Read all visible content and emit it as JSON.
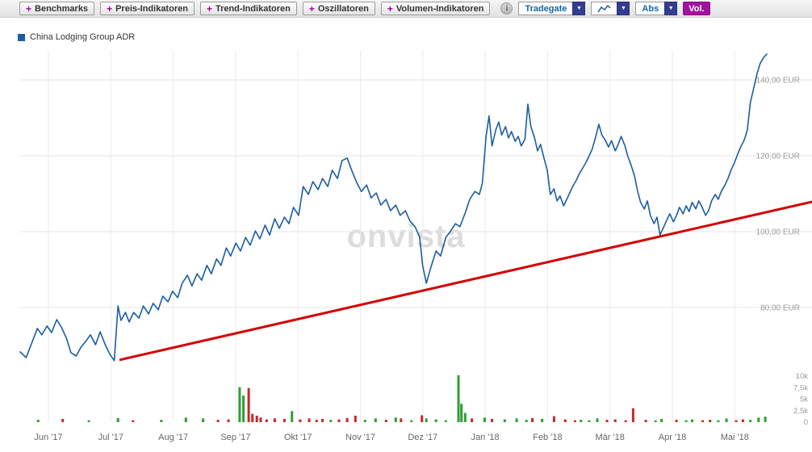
{
  "toolbar": {
    "plus": "+",
    "caret": "▼",
    "info_glyph": "i",
    "indicator_buttons": [
      {
        "label": "Benchmarks"
      },
      {
        "label": "Preis-Indikatoren"
      },
      {
        "label": "Trend-Indikatoren"
      },
      {
        "label": "Oszillatoren"
      },
      {
        "label": "Volumen-Indikatoren"
      }
    ],
    "exchange_label": "Tradegate",
    "scale_label": "Abs",
    "volume_label": "Vol."
  },
  "legend": {
    "series_name": "China Lodging Group ADR"
  },
  "watermark": "onvista",
  "chart_data": {
    "type": "line",
    "title": "China Lodging Group ADR",
    "grid": true,
    "legend_position": "top-left",
    "x_ticks": [
      "Jun '17",
      "Jul '17",
      "Aug '17",
      "Sep '17",
      "Okt '17",
      "Nov '17",
      "Dez '17",
      "Jan '18",
      "Feb '18",
      "Mär '18",
      "Apr '18",
      "Mai '18"
    ],
    "y_axis": {
      "unit": "EUR",
      "visible_range": [
        64,
        148
      ],
      "ticks": [
        {
          "label": "140,00 EUR",
          "value": 140
        },
        {
          "label": "120,00 EUR",
          "value": 120
        },
        {
          "label": "100,00 EUR",
          "value": 100
        },
        {
          "label": "80,00 EUR",
          "value": 80
        }
      ]
    },
    "volume_axis": {
      "ticks": [
        {
          "label": "10k",
          "value": 10
        },
        {
          "label": "7,5k",
          "value": 7.5
        },
        {
          "label": "5k",
          "value": 5
        },
        {
          "label": "2,5k",
          "value": 2.5
        },
        {
          "label": "0",
          "value": 0
        }
      ]
    },
    "colors": {
      "price": "#1b5da0",
      "trend": "#d40000",
      "volume_up": "#2f9e33",
      "volume_down": "#c62828"
    },
    "price_points": [
      [
        0.0,
        68.3
      ],
      [
        0.008,
        66.8
      ],
      [
        0.016,
        70.9
      ],
      [
        0.023,
        74.5
      ],
      [
        0.029,
        72.8
      ],
      [
        0.036,
        75.1
      ],
      [
        0.042,
        73.4
      ],
      [
        0.049,
        76.8
      ],
      [
        0.055,
        74.9
      ],
      [
        0.062,
        71.9
      ],
      [
        0.068,
        68.1
      ],
      [
        0.075,
        67.2
      ],
      [
        0.081,
        69.4
      ],
      [
        0.088,
        71.1
      ],
      [
        0.094,
        72.8
      ],
      [
        0.101,
        70.2
      ],
      [
        0.107,
        73.6
      ],
      [
        0.114,
        70.2
      ],
      [
        0.12,
        67.7
      ],
      [
        0.126,
        66.0
      ],
      [
        0.131,
        80.4
      ],
      [
        0.135,
        76.6
      ],
      [
        0.141,
        78.7
      ],
      [
        0.146,
        76.2
      ],
      [
        0.152,
        78.7
      ],
      [
        0.159,
        77.2
      ],
      [
        0.165,
        80.4
      ],
      [
        0.172,
        78.3
      ],
      [
        0.178,
        81.1
      ],
      [
        0.185,
        79.4
      ],
      [
        0.191,
        83.0
      ],
      [
        0.198,
        81.5
      ],
      [
        0.204,
        84.3
      ],
      [
        0.211,
        82.6
      ],
      [
        0.217,
        86.4
      ],
      [
        0.224,
        88.5
      ],
      [
        0.23,
        85.7
      ],
      [
        0.237,
        88.9
      ],
      [
        0.243,
        87.2
      ],
      [
        0.25,
        91.1
      ],
      [
        0.256,
        88.9
      ],
      [
        0.263,
        92.8
      ],
      [
        0.269,
        91.1
      ],
      [
        0.276,
        95.7
      ],
      [
        0.282,
        93.6
      ],
      [
        0.289,
        97.0
      ],
      [
        0.295,
        94.9
      ],
      [
        0.302,
        98.5
      ],
      [
        0.308,
        96.4
      ],
      [
        0.315,
        100.2
      ],
      [
        0.321,
        98.1
      ],
      [
        0.328,
        101.7
      ],
      [
        0.334,
        99.1
      ],
      [
        0.341,
        103.4
      ],
      [
        0.347,
        100.9
      ],
      [
        0.354,
        103.8
      ],
      [
        0.36,
        102.1
      ],
      [
        0.366,
        106.4
      ],
      [
        0.373,
        104.3
      ],
      [
        0.379,
        111.9
      ],
      [
        0.386,
        109.8
      ],
      [
        0.392,
        113.2
      ],
      [
        0.399,
        111.1
      ],
      [
        0.405,
        114.0
      ],
      [
        0.412,
        111.9
      ],
      [
        0.418,
        116.2
      ],
      [
        0.425,
        114.0
      ],
      [
        0.431,
        118.7
      ],
      [
        0.438,
        119.4
      ],
      [
        0.444,
        116.2
      ],
      [
        0.451,
        112.8
      ],
      [
        0.457,
        110.6
      ],
      [
        0.464,
        112.3
      ],
      [
        0.47,
        108.9
      ],
      [
        0.477,
        110.2
      ],
      [
        0.483,
        107.0
      ],
      [
        0.49,
        108.5
      ],
      [
        0.496,
        105.5
      ],
      [
        0.503,
        107.0
      ],
      [
        0.509,
        104.3
      ],
      [
        0.516,
        105.5
      ],
      [
        0.522,
        102.8
      ],
      [
        0.529,
        101.3
      ],
      [
        0.535,
        98.5
      ],
      [
        0.539,
        91.1
      ],
      [
        0.544,
        86.4
      ],
      [
        0.55,
        90.6
      ],
      [
        0.557,
        94.9
      ],
      [
        0.563,
        93.6
      ],
      [
        0.57,
        98.5
      ],
      [
        0.576,
        100.0
      ],
      [
        0.583,
        102.1
      ],
      [
        0.589,
        101.3
      ],
      [
        0.596,
        104.9
      ],
      [
        0.602,
        108.5
      ],
      [
        0.609,
        110.6
      ],
      [
        0.615,
        109.8
      ],
      [
        0.619,
        112.8
      ],
      [
        0.624,
        125.1
      ],
      [
        0.628,
        130.5
      ],
      [
        0.632,
        122.6
      ],
      [
        0.637,
        126.8
      ],
      [
        0.641,
        128.9
      ],
      [
        0.645,
        125.5
      ],
      [
        0.65,
        127.7
      ],
      [
        0.654,
        124.7
      ],
      [
        0.658,
        126.4
      ],
      [
        0.663,
        123.8
      ],
      [
        0.667,
        125.1
      ],
      [
        0.671,
        122.6
      ],
      [
        0.676,
        124.3
      ],
      [
        0.68,
        133.6
      ],
      [
        0.684,
        127.7
      ],
      [
        0.689,
        124.7
      ],
      [
        0.693,
        121.3
      ],
      [
        0.697,
        123.0
      ],
      [
        0.702,
        119.1
      ],
      [
        0.706,
        116.2
      ],
      [
        0.71,
        109.8
      ],
      [
        0.715,
        111.3
      ],
      [
        0.719,
        108.1
      ],
      [
        0.723,
        109.4
      ],
      [
        0.728,
        106.8
      ],
      [
        0.732,
        108.5
      ],
      [
        0.736,
        110.2
      ],
      [
        0.74,
        111.9
      ],
      [
        0.745,
        113.6
      ],
      [
        0.749,
        115.3
      ],
      [
        0.753,
        116.6
      ],
      [
        0.758,
        118.3
      ],
      [
        0.762,
        120.0
      ],
      [
        0.766,
        121.7
      ],
      [
        0.771,
        125.1
      ],
      [
        0.775,
        128.3
      ],
      [
        0.779,
        125.5
      ],
      [
        0.784,
        124.0
      ],
      [
        0.788,
        122.3
      ],
      [
        0.792,
        124.0
      ],
      [
        0.797,
        121.3
      ],
      [
        0.801,
        123.0
      ],
      [
        0.805,
        125.1
      ],
      [
        0.81,
        122.6
      ],
      [
        0.814,
        119.8
      ],
      [
        0.818,
        117.7
      ],
      [
        0.823,
        114.5
      ],
      [
        0.827,
        110.6
      ],
      [
        0.831,
        107.7
      ],
      [
        0.836,
        106.0
      ],
      [
        0.84,
        108.1
      ],
      [
        0.844,
        104.3
      ],
      [
        0.849,
        102.1
      ],
      [
        0.853,
        103.8
      ],
      [
        0.857,
        99.1
      ],
      [
        0.862,
        101.3
      ],
      [
        0.866,
        103.0
      ],
      [
        0.87,
        104.7
      ],
      [
        0.875,
        102.6
      ],
      [
        0.879,
        104.3
      ],
      [
        0.883,
        106.4
      ],
      [
        0.888,
        104.7
      ],
      [
        0.892,
        106.8
      ],
      [
        0.896,
        105.3
      ],
      [
        0.9,
        107.7
      ],
      [
        0.905,
        106.0
      ],
      [
        0.909,
        108.1
      ],
      [
        0.913,
        106.6
      ],
      [
        0.918,
        104.3
      ],
      [
        0.922,
        105.5
      ],
      [
        0.926,
        108.1
      ],
      [
        0.931,
        109.8
      ],
      [
        0.935,
        108.5
      ],
      [
        0.939,
        110.6
      ],
      [
        0.944,
        112.3
      ],
      [
        0.948,
        114.0
      ],
      [
        0.952,
        116.2
      ],
      [
        0.957,
        118.3
      ],
      [
        0.961,
        120.4
      ],
      [
        0.965,
        122.3
      ],
      [
        0.97,
        124.3
      ],
      [
        0.974,
        126.8
      ],
      [
        0.978,
        134.0
      ],
      [
        0.983,
        138.3
      ],
      [
        0.987,
        141.7
      ],
      [
        0.991,
        144.3
      ],
      [
        0.996,
        146.0
      ],
      [
        1.0,
        146.8
      ]
    ],
    "trend_line": {
      "f": [
        0.133,
        1.061
      ],
      "price": [
        66.2,
        107.9
      ]
    },
    "volume_bars": [
      [
        0.024,
        0.5,
        "g"
      ],
      [
        0.057,
        0.7,
        "r"
      ],
      [
        0.092,
        0.4,
        "g"
      ],
      [
        0.131,
        0.9,
        "g"
      ],
      [
        0.151,
        0.4,
        "r"
      ],
      [
        0.189,
        0.5,
        "g"
      ],
      [
        0.222,
        1.0,
        "g"
      ],
      [
        0.245,
        0.8,
        "g"
      ],
      [
        0.265,
        0.5,
        "r"
      ],
      [
        0.279,
        0.6,
        "r"
      ],
      [
        0.294,
        7.6,
        "g"
      ],
      [
        0.299,
        5.8,
        "g"
      ],
      [
        0.306,
        7.4,
        "r"
      ],
      [
        0.311,
        1.8,
        "r"
      ],
      [
        0.317,
        1.4,
        "r"
      ],
      [
        0.322,
        1.0,
        "r"
      ],
      [
        0.33,
        0.6,
        "r"
      ],
      [
        0.341,
        0.8,
        "r"
      ],
      [
        0.354,
        0.7,
        "r"
      ],
      [
        0.364,
        2.4,
        "g"
      ],
      [
        0.375,
        0.6,
        "r"
      ],
      [
        0.387,
        0.8,
        "r"
      ],
      [
        0.397,
        0.5,
        "r"
      ],
      [
        0.405,
        0.7,
        "r"
      ],
      [
        0.416,
        0.5,
        "g"
      ],
      [
        0.427,
        0.6,
        "r"
      ],
      [
        0.438,
        0.9,
        "r"
      ],
      [
        0.449,
        1.4,
        "r"
      ],
      [
        0.462,
        0.5,
        "g"
      ],
      [
        0.476,
        0.8,
        "g"
      ],
      [
        0.49,
        0.5,
        "r"
      ],
      [
        0.503,
        1.0,
        "g"
      ],
      [
        0.51,
        0.8,
        "r"
      ],
      [
        0.524,
        0.4,
        "g"
      ],
      [
        0.538,
        1.5,
        "r"
      ],
      [
        0.544,
        0.8,
        "g"
      ],
      [
        0.557,
        0.6,
        "g"
      ],
      [
        0.57,
        0.4,
        "g"
      ],
      [
        0.587,
        10.2,
        "g"
      ],
      [
        0.591,
        4.0,
        "g"
      ],
      [
        0.596,
        2.0,
        "g"
      ],
      [
        0.605,
        0.8,
        "r"
      ],
      [
        0.622,
        1.0,
        "g"
      ],
      [
        0.632,
        0.7,
        "r"
      ],
      [
        0.649,
        0.6,
        "g"
      ],
      [
        0.665,
        0.8,
        "g"
      ],
      [
        0.678,
        0.5,
        "g"
      ],
      [
        0.686,
        0.9,
        "r"
      ],
      [
        0.699,
        0.7,
        "g"
      ],
      [
        0.715,
        1.3,
        "r"
      ],
      [
        0.73,
        0.6,
        "r"
      ],
      [
        0.743,
        0.4,
        "r"
      ],
      [
        0.751,
        0.5,
        "g"
      ],
      [
        0.762,
        0.4,
        "g"
      ],
      [
        0.773,
        0.8,
        "g"
      ],
      [
        0.786,
        0.5,
        "r"
      ],
      [
        0.797,
        0.6,
        "r"
      ],
      [
        0.811,
        0.4,
        "r"
      ],
      [
        0.821,
        3.0,
        "r"
      ],
      [
        0.838,
        0.5,
        "r"
      ],
      [
        0.851,
        0.4,
        "g"
      ],
      [
        0.859,
        0.7,
        "g"
      ],
      [
        0.879,
        0.5,
        "r"
      ],
      [
        0.892,
        0.4,
        "g"
      ],
      [
        0.9,
        0.6,
        "g"
      ],
      [
        0.914,
        0.4,
        "r"
      ],
      [
        0.924,
        0.5,
        "r"
      ],
      [
        0.935,
        0.4,
        "g"
      ],
      [
        0.946,
        0.8,
        "g"
      ],
      [
        0.959,
        0.4,
        "r"
      ],
      [
        0.968,
        0.6,
        "r"
      ],
      [
        0.978,
        0.5,
        "g"
      ],
      [
        0.989,
        1.0,
        "g"
      ],
      [
        0.998,
        1.2,
        "g"
      ]
    ]
  }
}
